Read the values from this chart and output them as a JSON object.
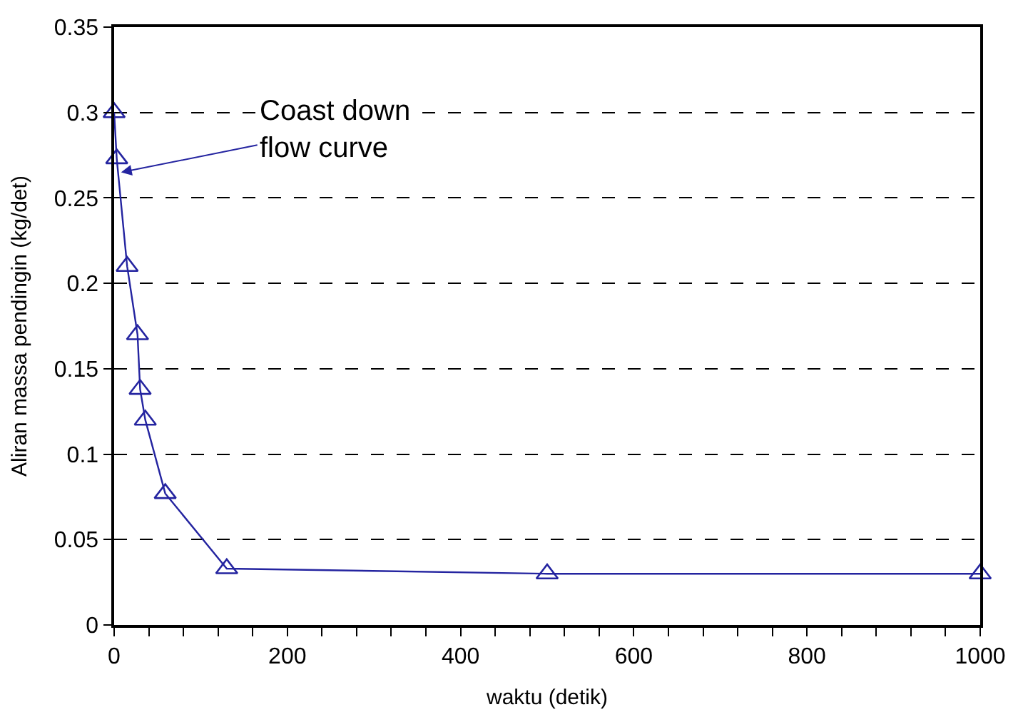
{
  "chart_data": {
    "type": "line",
    "xlabel": "waktu (detik)",
    "ylabel": "Aliran massa pendingin (kg/det)",
    "x": [
      0,
      3,
      15,
      27,
      30,
      36,
      59,
      130,
      500,
      1000
    ],
    "series": [
      {
        "color": "#2424a0",
        "values": [
          0.3,
          0.273,
          0.21,
          0.17,
          0.138,
          0.12,
          0.077,
          0.033,
          0.03,
          0.03
        ]
      }
    ],
    "xlim": [
      0,
      1000
    ],
    "xticks": [
      0,
      {
        "value": 40,
        "label": null
      },
      {
        "value": 80,
        "label": null
      },
      {
        "value": 120,
        "label": null
      },
      {
        "value": 160,
        "label": null
      },
      200,
      {
        "value": 240,
        "label": null
      },
      {
        "value": 280,
        "label": null
      },
      {
        "value": 320,
        "label": null
      },
      {
        "value": 360,
        "label": null
      },
      400,
      {
        "value": 440,
        "label": null
      },
      {
        "value": 480,
        "label": null
      },
      {
        "value": 520,
        "label": null
      },
      {
        "value": 560,
        "label": null
      },
      600,
      {
        "value": 640,
        "label": null
      },
      {
        "value": 680,
        "label": null
      },
      {
        "value": 720,
        "label": null
      },
      {
        "value": 760,
        "label": null
      },
      800,
      {
        "value": 840,
        "label": null
      },
      {
        "value": 880,
        "label": null
      },
      {
        "value": 920,
        "label": null
      },
      {
        "value": 960,
        "label": null
      },
      1000
    ],
    "ylim": [
      0,
      0.35
    ],
    "yticks": [
      0,
      0.05,
      0.1,
      0.15,
      0.2,
      0.25,
      0.3,
      0.35
    ],
    "grid": "y",
    "marker": "triangle",
    "line_style": "solid",
    "annotations": [
      {
        "text": "Coast down\nflow curve",
        "x": 8,
        "y": 0.265
      }
    ]
  }
}
